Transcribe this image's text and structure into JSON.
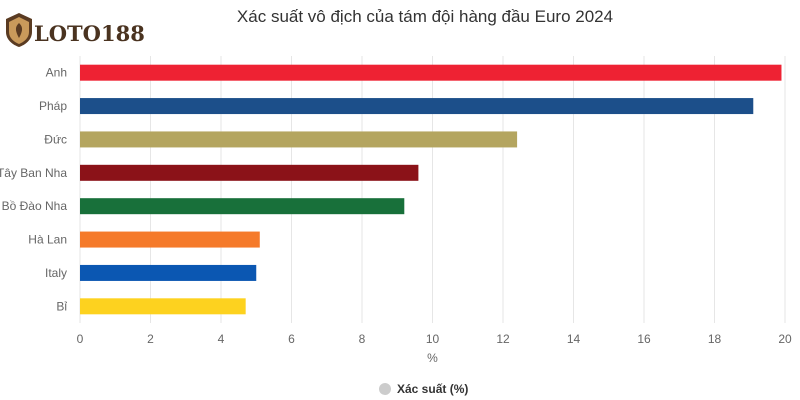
{
  "logo": {
    "text": "LOTO188"
  },
  "chart_data": {
    "type": "bar",
    "orientation": "horizontal",
    "title": "Xác suất vô địch của tám đội hàng đầu Euro 2024",
    "categories": [
      "Anh",
      "Pháp",
      "Đức",
      "Tây Ban Nha",
      "Bồ Đào Nha",
      "Hà Lan",
      "Italy",
      "Bỉ"
    ],
    "series": [
      {
        "name": "Xác suất (%)",
        "values": [
          19.9,
          19.1,
          12.4,
          9.6,
          9.2,
          5.1,
          5.0,
          4.7
        ],
        "colors": [
          "#ee2233",
          "#1c4f8a",
          "#b4a55f",
          "#8b1218",
          "#18703a",
          "#f57a2a",
          "#0b57b2",
          "#fdd21f"
        ]
      }
    ],
    "xlabel": "%",
    "ylabel": "",
    "xlim": [
      0,
      20
    ],
    "xticks": [
      0,
      2,
      4,
      6,
      8,
      10,
      12,
      14,
      16,
      18,
      20
    ],
    "grid": true,
    "legend": {
      "position": "bottom",
      "label": "Xác suất (%)",
      "marker_color": "#cccccc"
    }
  }
}
